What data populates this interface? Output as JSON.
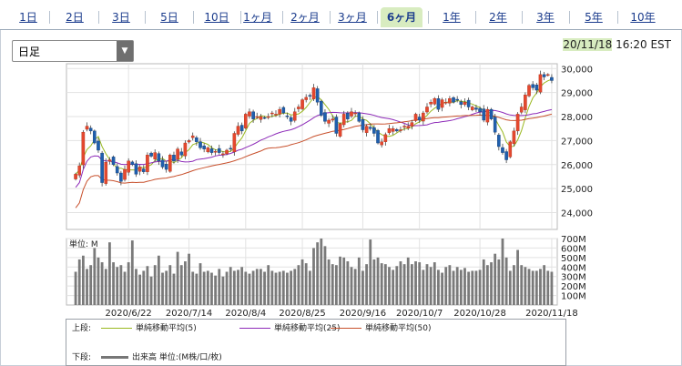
{
  "tabs": [
    {
      "label": "1日"
    },
    {
      "label": "2日"
    },
    {
      "label": "3日"
    },
    {
      "label": "5日"
    },
    {
      "label": "10日"
    },
    {
      "label": "1ヶ月"
    },
    {
      "label": "2ヶ月"
    },
    {
      "label": "3ヶ月"
    },
    {
      "label": "6ヶ月",
      "active": true
    },
    {
      "label": "1年"
    },
    {
      "label": "2年"
    },
    {
      "label": "3年"
    },
    {
      "label": "5年"
    },
    {
      "label": "10年"
    }
  ],
  "select": {
    "value": "日足"
  },
  "timestamp": {
    "date": "20/11/18",
    "time": "16:20 EST"
  },
  "chart_data": {
    "type": "candlestick",
    "price_axis": {
      "ticks": [
        "30,000",
        "29,000",
        "28,000",
        "27,000",
        "26,000",
        "25,000",
        "24,000"
      ],
      "ylim": [
        23300,
        30200
      ]
    },
    "volume_axis": {
      "label": "単位: M",
      "ticks": [
        "700M",
        "600M",
        "500M",
        "400M",
        "300M",
        "200M",
        "100M"
      ],
      "ylim": [
        0,
        700
      ]
    },
    "x_ticks": [
      "2020/6/22",
      "2020/7/14",
      "2020/8/4",
      "2020/8/25",
      "2020/9/16",
      "2020/10/7",
      "2020/10/28",
      "2020/11/18"
    ],
    "close": [
      25600,
      25950,
      27350,
      27600,
      27400,
      26900,
      26600,
      25250,
      26100,
      26200,
      26000,
      25650,
      25300,
      25800,
      26150,
      26000,
      25600,
      25900,
      25700,
      26400,
      26350,
      26500,
      26150,
      25900,
      25800,
      26400,
      26150,
      26650,
      26400,
      26900,
      27000,
      27200,
      26950,
      26700,
      26650,
      26700,
      26500,
      26550,
      26500,
      26450,
      26600,
      26650,
      27300,
      27600,
      27400,
      28100,
      28200,
      27900,
      28000,
      28000,
      27950,
      28000,
      28150,
      28100,
      28300,
      28150,
      28000,
      27800,
      28200,
      28400,
      28700,
      28800,
      28850,
      29200,
      28600,
      28050,
      27800,
      27850,
      27900,
      27300,
      27700,
      28100,
      27900,
      28200,
      28150,
      27800,
      27450,
      27600,
      27500,
      27300,
      26900,
      26950,
      27250,
      27500,
      27500,
      27400,
      27450,
      27600,
      27600,
      27750,
      28100,
      27850,
      28150,
      28400,
      28600,
      28750,
      28300,
      28700,
      28600,
      28750,
      28600,
      28700,
      28500,
      28600,
      28400,
      28400,
      28300,
      28200,
      27850,
      28300,
      27900,
      27350,
      26750,
      26500,
      26200,
      26950,
      27400,
      28100,
      28400,
      28900,
      29300,
      29200,
      29100,
      29750,
      29650,
      29750,
      29500
    ],
    "volume": [
      350,
      480,
      520,
      380,
      420,
      600,
      500,
      450,
      380,
      660,
      450,
      400,
      420,
      350,
      450,
      680,
      380,
      320,
      360,
      410,
      300,
      420,
      520,
      340,
      360,
      420,
      330,
      560,
      420,
      460,
      540,
      350,
      330,
      440,
      350,
      360,
      340,
      310,
      380,
      300,
      350,
      400,
      360,
      370,
      400,
      350,
      330,
      360,
      380,
      380,
      350,
      420,
      360,
      340,
      350,
      360,
      340,
      360,
      380,
      420,
      480,
      440,
      360,
      600,
      660,
      700,
      620,
      480,
      430,
      420,
      510,
      500,
      460,
      400,
      380,
      500,
      360,
      430,
      690,
      480,
      500,
      440,
      430,
      400,
      370,
      410,
      460,
      430,
      500,
      430,
      460,
      450,
      370,
      430,
      400,
      450,
      370,
      340,
      400,
      420,
      360,
      400,
      370,
      390,
      350,
      360,
      360,
      370,
      480,
      420,
      450,
      540,
      480,
      700,
      500,
      360,
      420,
      580,
      420,
      400,
      380,
      360,
      360,
      380,
      420,
      360,
      350
    ],
    "ma_series": [
      {
        "name": "単純移動平均(5)",
        "color": "#9ab820"
      },
      {
        "name": "単純移動平均(25)",
        "color": "#8d2ab8"
      },
      {
        "name": "単純移動平均(50)",
        "color": "#c8502c"
      }
    ],
    "volume_series": {
      "name": "出来高 単位:(M株/口/枚)",
      "color": "#777777"
    }
  },
  "legend": {
    "upper_label": "上段:",
    "lower_label": "下段:"
  }
}
